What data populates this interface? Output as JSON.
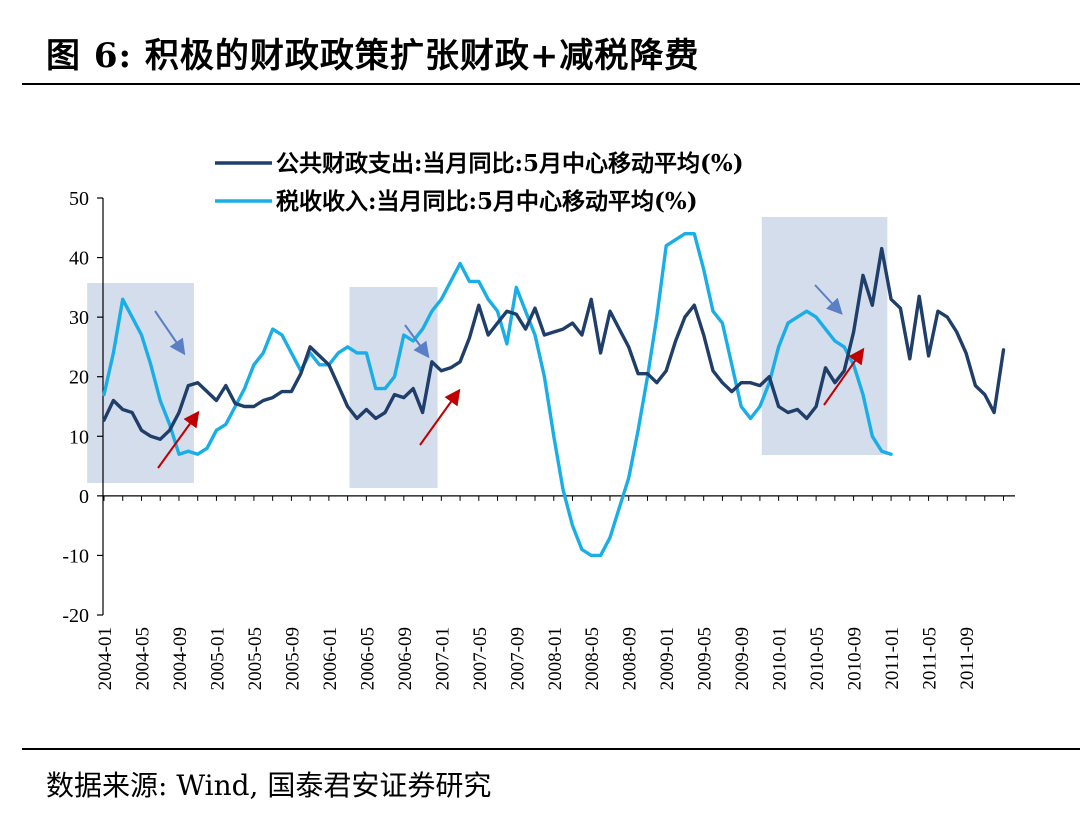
{
  "title": "图 6:  积极的财政政策扩张财政+减税降费",
  "source": "数据来源:  Wind,  国泰君安证券研究",
  "chart_data": {
    "type": "line",
    "ylim": [
      -20,
      50
    ],
    "yticks": [
      -20,
      -10,
      0,
      10,
      20,
      30,
      40,
      50
    ],
    "x_labels": [
      "2004-01",
      "2004-05",
      "2004-09",
      "2005-01",
      "2005-05",
      "2005-09",
      "2006-01",
      "2006-05",
      "2006-09",
      "2007-01",
      "2007-05",
      "2007-09",
      "2008-01",
      "2008-05",
      "2008-09",
      "2009-01",
      "2009-05",
      "2009-09",
      "2010-01",
      "2010-05",
      "2010-09",
      "2011-01",
      "2011-05",
      "2011-09"
    ],
    "grid": false,
    "legend_position": "top",
    "series": [
      {
        "name": "公共财政支出:当月同比:5月中心移动平均(%)",
        "color": "#1f3e6a",
        "values": [
          12.7,
          16,
          14.5,
          14,
          11,
          10,
          9.5,
          11,
          14,
          18.5,
          19,
          17.5,
          16,
          18.5,
          15.5,
          15,
          15,
          16,
          16.5,
          17.5,
          17.5,
          20.5,
          25,
          23.5,
          22,
          18.5,
          15,
          13,
          14.5,
          13,
          14,
          17,
          16.5,
          18,
          14,
          22.5,
          21,
          21.5,
          22.5,
          26.5,
          32,
          27,
          29,
          31,
          30.5,
          28,
          31.5,
          27,
          27.5,
          28,
          29,
          27,
          33,
          24,
          31,
          28,
          25,
          20.5,
          20.5,
          19,
          21,
          26,
          30,
          32,
          27,
          21,
          19,
          17.5,
          19,
          19,
          18.5,
          20,
          15,
          14,
          14.5,
          13,
          15,
          21.5,
          19,
          21,
          27.5,
          37,
          32,
          41.5,
          33,
          31.5,
          23,
          33.5,
          23.5,
          31,
          30,
          27.5,
          24,
          18.5,
          17,
          14,
          24.5
        ]
      },
      {
        "name": "税收收入:当月同比:5月中心移动平均(%)",
        "color": "#19aee8",
        "values": [
          17,
          24,
          33,
          30,
          27,
          22,
          16,
          12,
          7,
          7.5,
          7,
          8,
          11,
          12,
          15,
          18,
          22,
          24,
          28,
          27,
          24,
          21,
          24,
          22,
          22,
          24,
          25,
          24,
          24,
          18,
          18,
          20,
          27,
          26,
          28,
          31,
          33,
          36,
          39,
          36,
          36,
          33,
          31,
          25.5,
          35,
          31,
          27,
          20,
          10,
          1,
          -5,
          -9,
          -10,
          -10,
          -7,
          -2,
          3,
          11,
          20,
          30,
          42,
          43,
          44,
          44,
          38,
          31,
          29,
          22,
          15,
          13,
          15,
          19,
          25,
          29,
          30,
          31,
          30,
          28,
          26,
          25,
          22,
          17,
          10,
          7.5,
          7
        ]
      }
    ],
    "annotations": {
      "shaded_regions": [
        {
          "from": "2003-11",
          "to": "2004-10"
        },
        {
          "from": "2006-03",
          "to": "2006-12"
        },
        {
          "from": "2009-11",
          "to": "2010-12"
        }
      ]
    }
  }
}
